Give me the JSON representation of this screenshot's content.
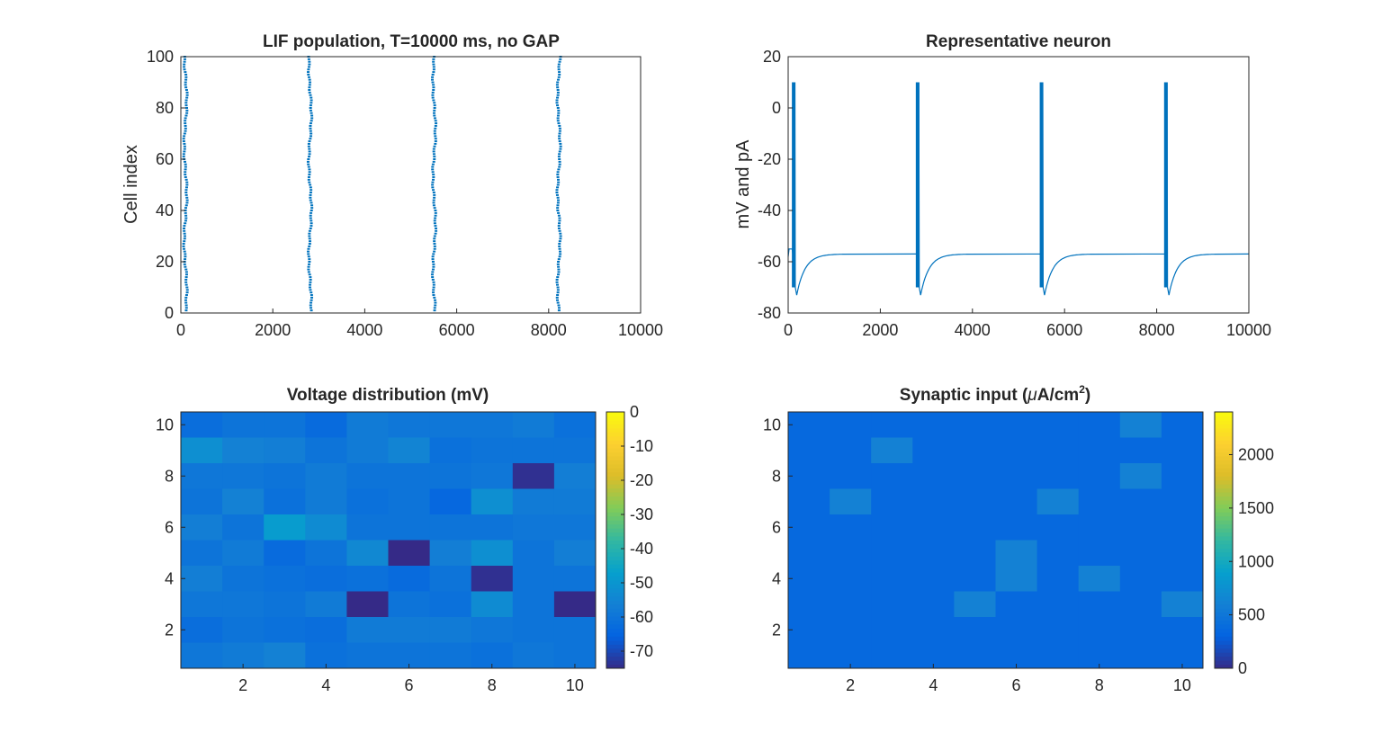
{
  "chart_data": [
    {
      "id": "raster",
      "type": "scatter",
      "title": "LIF population, T=10000 ms, no GAP",
      "xlabel": "",
      "ylabel": "Cell index",
      "xlim": [
        0,
        10000
      ],
      "ylim": [
        0,
        100
      ],
      "xticks": [
        0,
        2000,
        4000,
        6000,
        8000,
        10000
      ],
      "yticks": [
        0,
        20,
        40,
        60,
        80,
        100
      ],
      "grid": false,
      "marker_color": "#0072BD",
      "burst_centers_ms": [
        110,
        2820,
        5520,
        8230
      ],
      "spike_count_per_burst": 100
    },
    {
      "id": "trace",
      "type": "line",
      "title": "Representative neuron",
      "xlabel": "",
      "ylabel": "mV and pA",
      "xlim": [
        0,
        10000
      ],
      "ylim": [
        -80,
        20
      ],
      "xticks": [
        0,
        2000,
        4000,
        6000,
        8000,
        10000
      ],
      "yticks": [
        -80,
        -60,
        -40,
        -20,
        0,
        20
      ],
      "grid": false,
      "line_color": "#0072BD",
      "resting_mV": -57,
      "spike_peak": 10,
      "reset_mV": -70,
      "trough_mV": -73,
      "spike_times_ms": [
        100,
        2790,
        5480,
        8180
      ],
      "end_ms": 10000
    },
    {
      "id": "voltage",
      "type": "heatmap",
      "title": "Voltage distribution (mV)",
      "xlabel": "",
      "ylabel": "",
      "xticks": [
        2,
        4,
        6,
        8,
        10
      ],
      "yticks": [
        2,
        4,
        6,
        8,
        10
      ],
      "clim": [
        -75,
        0
      ],
      "colorbar_ticks": [
        0,
        -10,
        -20,
        -30,
        -40,
        -50,
        -60,
        -70
      ],
      "rows_top_to_bottom": [
        [
          -62,
          -60,
          -60,
          -63,
          -58,
          -59,
          -59,
          -59,
          -58,
          -61
        ],
        [
          -52,
          -56,
          -57,
          -60,
          -58,
          -55,
          -61,
          -60,
          -60,
          -60
        ],
        [
          -59,
          -59,
          -60,
          -58,
          -60,
          -60,
          -60,
          -59,
          -74,
          -57
        ],
        [
          -60,
          -56,
          -61,
          -58,
          -61,
          -60,
          -64,
          -52,
          -58,
          -58
        ],
        [
          -57,
          -60,
          -48,
          -53,
          -60,
          -60,
          -60,
          -60,
          -59,
          -59
        ],
        [
          -60,
          -58,
          -63,
          -60,
          -54,
          -75,
          -57,
          -52,
          -60,
          -57
        ],
        [
          -57,
          -60,
          -61,
          -62,
          -61,
          -63,
          -60,
          -74,
          -60,
          -60
        ],
        [
          -59,
          -59,
          -60,
          -58,
          -75,
          -60,
          -61,
          -53,
          -60,
          -75
        ],
        [
          -62,
          -60,
          -61,
          -62,
          -58,
          -58,
          -58,
          -59,
          -60,
          -60
        ],
        [
          -59,
          -58,
          -56,
          -61,
          -60,
          -60,
          -60,
          -61,
          -59,
          -60
        ]
      ]
    },
    {
      "id": "synaptic",
      "type": "heatmap",
      "title": "Synaptic input (",
      "title_mu": "μ",
      "title_unit": "A/cm",
      "title_sup": "2",
      "title_close": ")",
      "xlabel": "",
      "ylabel": "",
      "xticks": [
        2,
        4,
        6,
        8,
        10
      ],
      "yticks": [
        2,
        4,
        6,
        8,
        10
      ],
      "clim": [
        0,
        2400
      ],
      "colorbar_ticks": [
        0,
        500,
        1000,
        1500,
        2000
      ],
      "rows_top_to_bottom": [
        [
          360,
          360,
          360,
          360,
          360,
          360,
          360,
          360,
          610,
          360
        ],
        [
          360,
          360,
          610,
          360,
          360,
          360,
          360,
          360,
          360,
          360
        ],
        [
          360,
          360,
          360,
          360,
          360,
          360,
          360,
          360,
          610,
          360
        ],
        [
          360,
          610,
          360,
          360,
          360,
          360,
          610,
          360,
          360,
          360
        ],
        [
          360,
          360,
          360,
          360,
          360,
          360,
          360,
          360,
          360,
          360
        ],
        [
          360,
          360,
          360,
          360,
          360,
          610,
          360,
          360,
          360,
          360
        ],
        [
          360,
          360,
          360,
          360,
          360,
          610,
          360,
          610,
          360,
          360
        ],
        [
          360,
          360,
          360,
          360,
          610,
          360,
          360,
          360,
          360,
          610
        ],
        [
          360,
          360,
          360,
          360,
          360,
          360,
          360,
          360,
          360,
          360
        ],
        [
          360,
          360,
          360,
          360,
          360,
          360,
          360,
          360,
          360,
          360
        ]
      ]
    }
  ]
}
